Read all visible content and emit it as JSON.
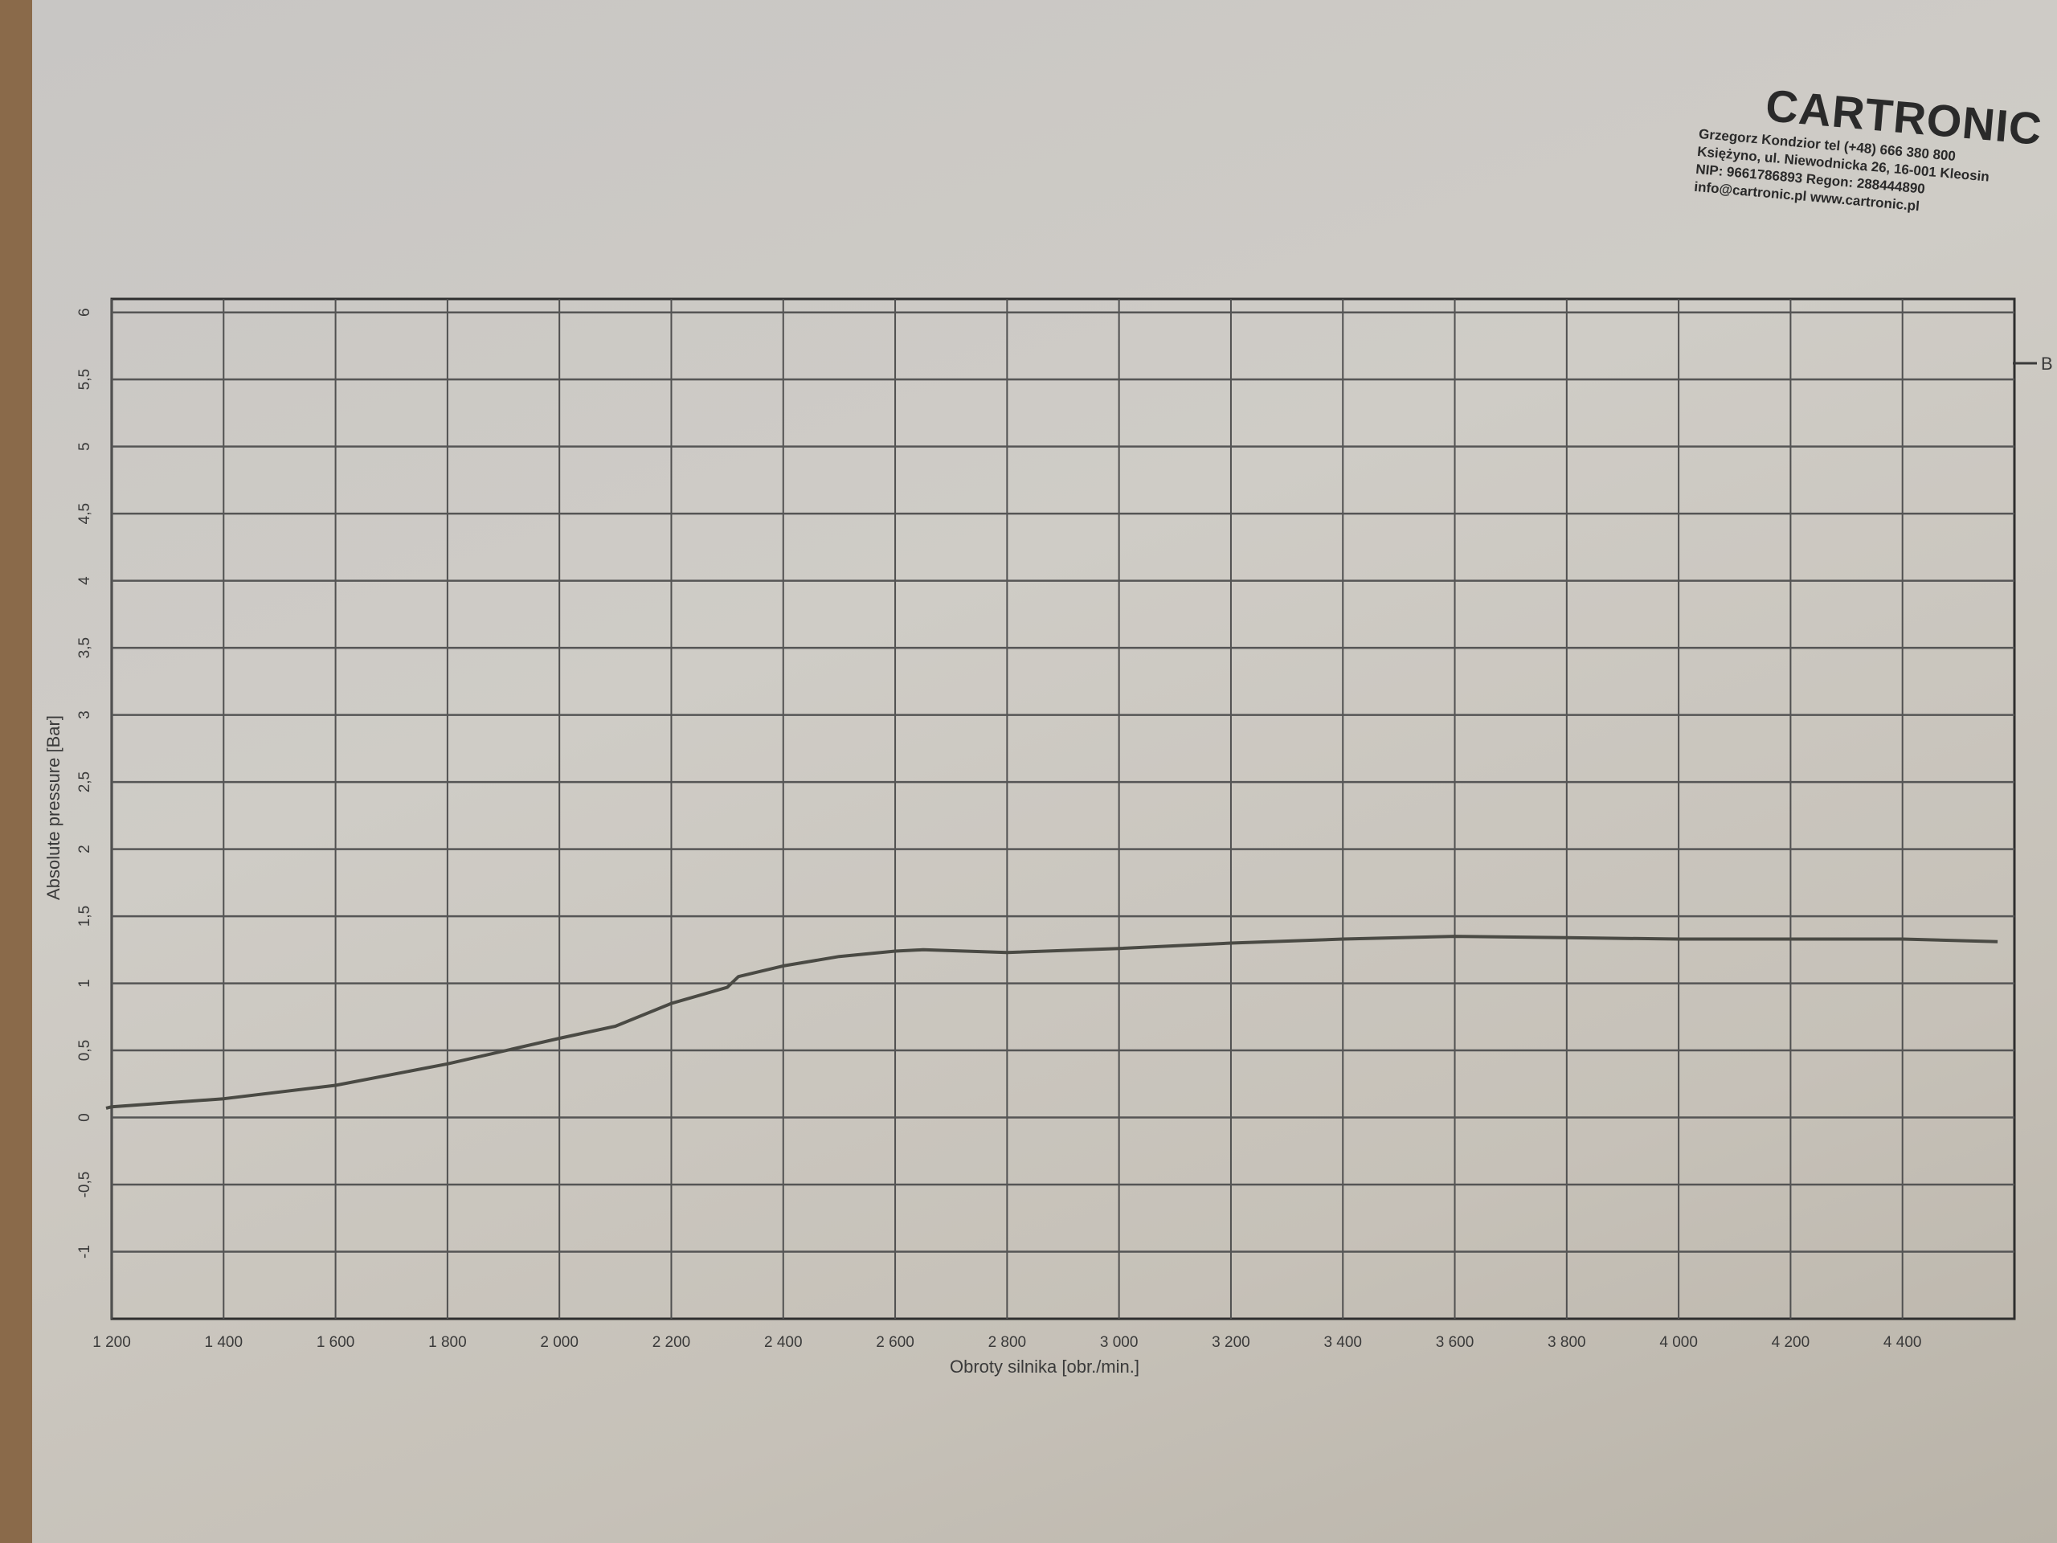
{
  "stamp": {
    "brand": "CARTRONIC",
    "lines": [
      "Grzegorz Kondzior   tel (+48) 666 380 800",
      "Księżyno, ul. Niewodnicka 26, 16-001 Kleosin",
      "NIP: 9661786893      Regon: 288444890",
      "info@cartronic.pl      www.cartronic.pl"
    ]
  },
  "chart_data": {
    "type": "line",
    "xlabel": "Obroty silnika [obr./min.]",
    "ylabel": "Absolute pressure [Bar]",
    "xlim": [
      1200,
      4600
    ],
    "ylim": [
      -1.5,
      6.1
    ],
    "grid": true,
    "x_ticks": [
      1200,
      1400,
      1600,
      1800,
      2000,
      2200,
      2400,
      2600,
      2800,
      3000,
      3200,
      3400,
      3600,
      3800,
      4000,
      4200,
      4400
    ],
    "x_tick_labels": [
      "1 200",
      "1 400",
      "1 600",
      "1 800",
      "2 000",
      "2 200",
      "2 400",
      "2 600",
      "2 800",
      "3 000",
      "3 200",
      "3 400",
      "3 600",
      "3 800",
      "4 000",
      "4 200",
      "4 400"
    ],
    "y_ticks": [
      -1,
      -0.5,
      0,
      0.5,
      1,
      1.5,
      2,
      2.5,
      3,
      3.5,
      4,
      4.5,
      5,
      5.5,
      6
    ],
    "y_tick_labels": [
      "-1",
      "-0,5",
      "0",
      "0,5",
      "1",
      "1,5",
      "2",
      "2,5",
      "3",
      "3,5",
      "4",
      "4,5",
      "5",
      "5,5",
      "6"
    ],
    "legend": {
      "placement": "right",
      "entries": [
        "B"
      ]
    },
    "series": [
      {
        "name": "B",
        "color": "#4a4a44",
        "x": [
          1190,
          1200,
          1400,
          1600,
          1800,
          2000,
          2100,
          2200,
          2300,
          2320,
          2400,
          2500,
          2600,
          2650,
          2800,
          3000,
          3200,
          3400,
          3600,
          3800,
          4000,
          4200,
          4400,
          4570
        ],
        "y": [
          0.07,
          0.08,
          0.14,
          0.24,
          0.4,
          0.59,
          0.68,
          0.85,
          0.97,
          1.05,
          1.13,
          1.2,
          1.24,
          1.25,
          1.23,
          1.26,
          1.3,
          1.33,
          1.35,
          1.34,
          1.33,
          1.33,
          1.33,
          1.31
        ]
      }
    ]
  }
}
